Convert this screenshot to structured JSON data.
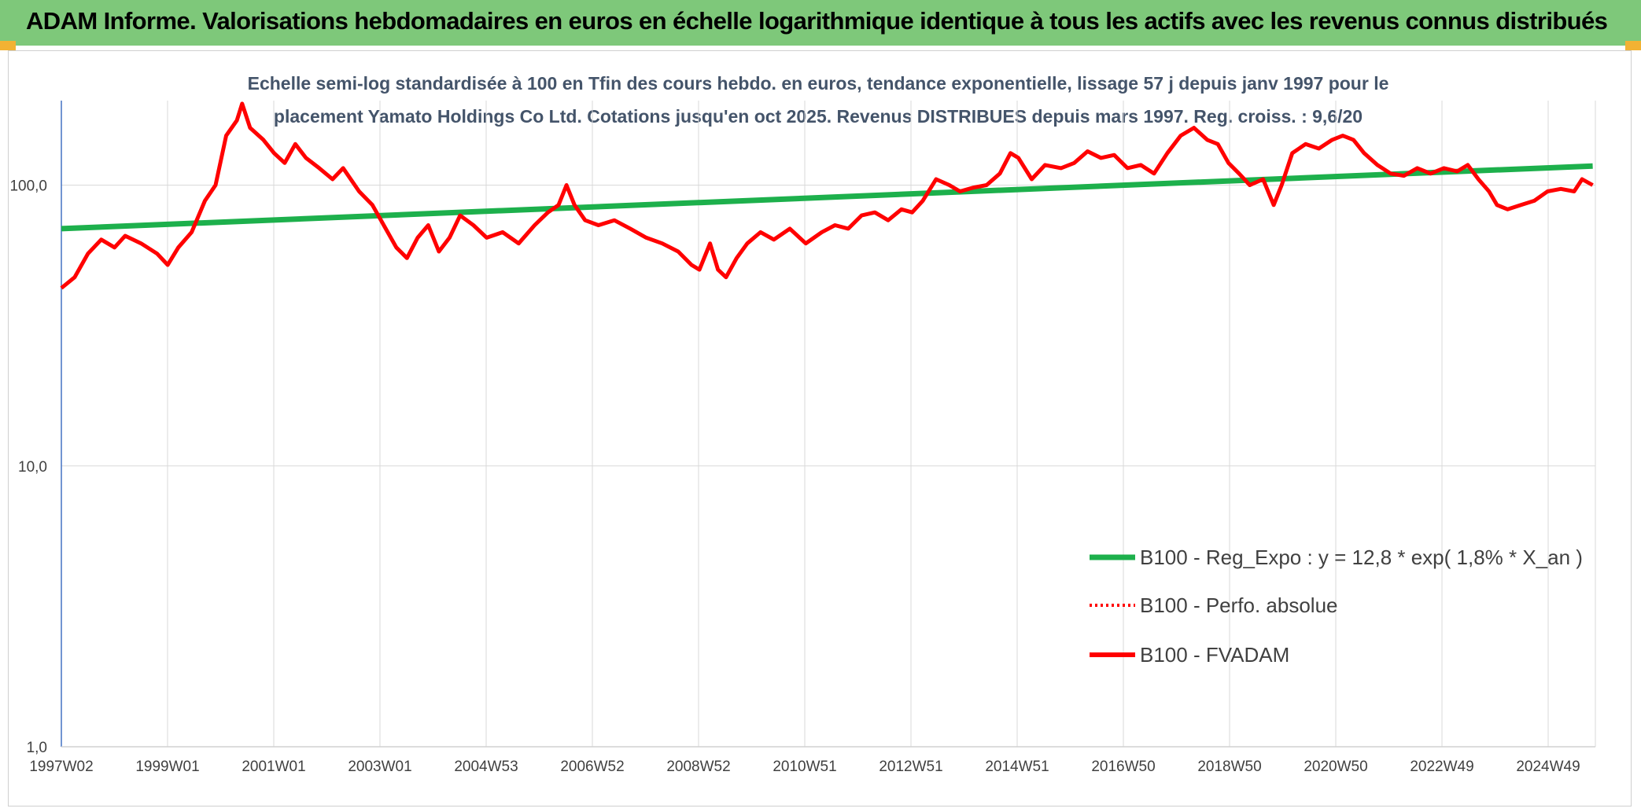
{
  "header": {
    "title": "ADAM Informe. Valorisations hebdomadaires en euros en échelle logarithmique identique à tous les actifs avec les revenus connus distribués"
  },
  "colors": {
    "banner": "#7ec87a",
    "trend": "#1db04c",
    "fvadam": "#ff0000",
    "perfo": "#ff0000",
    "grid": "#d9d9d9",
    "axis": "#4472c4"
  },
  "chart_data": {
    "type": "line",
    "subtitle_lines": [
      "Echelle semi-log standardisée à 100 en Tfin des cours hebdo. en euros, tendance exponentielle, lissage 57 j depuis janv 1997 pour le",
      "placement Yamato Holdings Co Ltd. Cotations jusqu'en oct 2025. Revenus DISTRIBUES depuis mars 1997. Reg. croiss. : 9,6/20"
    ],
    "y_scale": "log",
    "ylim": [
      1,
      200
    ],
    "y_ticks": [
      "1,0",
      "10,0",
      "100,0"
    ],
    "xlim": [
      1997.0,
      2025.85
    ],
    "x_ticks": [
      "1997W02",
      "1999W01",
      "2001W01",
      "2003W01",
      "2004W53",
      "2006W52",
      "2008W52",
      "2010W51",
      "2012W51",
      "2014W51",
      "2016W50",
      "2018W50",
      "2020W50",
      "2022W49",
      "2024W49"
    ],
    "grid": "vertical",
    "legend_position": "bottom-right",
    "series": [
      {
        "name": "B100 - Reg_Expo : y = 12,8 * exp( 1,8% *  X_an )",
        "style": "solid-green",
        "points": [
          [
            1997.0,
            70
          ],
          [
            2025.8,
            117
          ]
        ]
      },
      {
        "name": "B100 - Perfo. absolue",
        "style": "dotted-red",
        "points": []
      },
      {
        "name": "B100 - FVADAM",
        "style": "solid-red",
        "points": [
          [
            1997.0,
            43
          ],
          [
            1997.25,
            47
          ],
          [
            1997.5,
            57
          ],
          [
            1997.75,
            64
          ],
          [
            1998.0,
            60
          ],
          [
            1998.2,
            66
          ],
          [
            1998.5,
            62
          ],
          [
            1998.8,
            57
          ],
          [
            1999.0,
            52
          ],
          [
            1999.2,
            60
          ],
          [
            1999.45,
            68
          ],
          [
            1999.7,
            88
          ],
          [
            1999.9,
            100
          ],
          [
            2000.1,
            150
          ],
          [
            2000.3,
            170
          ],
          [
            2000.4,
            195
          ],
          [
            2000.55,
            160
          ],
          [
            2000.8,
            145
          ],
          [
            2001.0,
            130
          ],
          [
            2001.2,
            120
          ],
          [
            2001.4,
            140
          ],
          [
            2001.6,
            125
          ],
          [
            2001.85,
            115
          ],
          [
            2002.1,
            105
          ],
          [
            2002.3,
            115
          ],
          [
            2002.6,
            95
          ],
          [
            2002.85,
            85
          ],
          [
            2003.1,
            70
          ],
          [
            2003.3,
            60
          ],
          [
            2003.5,
            55
          ],
          [
            2003.7,
            65
          ],
          [
            2003.9,
            72
          ],
          [
            2004.1,
            58
          ],
          [
            2004.3,
            65
          ],
          [
            2004.5,
            78
          ],
          [
            2004.75,
            72
          ],
          [
            2005.0,
            65
          ],
          [
            2005.3,
            68
          ],
          [
            2005.6,
            62
          ],
          [
            2005.9,
            72
          ],
          [
            2006.15,
            80
          ],
          [
            2006.35,
            85
          ],
          [
            2006.5,
            100
          ],
          [
            2006.65,
            85
          ],
          [
            2006.85,
            75
          ],
          [
            2007.1,
            72
          ],
          [
            2007.4,
            75
          ],
          [
            2007.7,
            70
          ],
          [
            2008.0,
            65
          ],
          [
            2008.3,
            62
          ],
          [
            2008.6,
            58
          ],
          [
            2008.85,
            52
          ],
          [
            2009.0,
            50
          ],
          [
            2009.2,
            62
          ],
          [
            2009.35,
            50
          ],
          [
            2009.5,
            47
          ],
          [
            2009.7,
            55
          ],
          [
            2009.9,
            62
          ],
          [
            2010.15,
            68
          ],
          [
            2010.4,
            64
          ],
          [
            2010.7,
            70
          ],
          [
            2011.0,
            62
          ],
          [
            2011.3,
            68
          ],
          [
            2011.55,
            72
          ],
          [
            2011.8,
            70
          ],
          [
            2012.05,
            78
          ],
          [
            2012.3,
            80
          ],
          [
            2012.55,
            75
          ],
          [
            2012.8,
            82
          ],
          [
            2013.0,
            80
          ],
          [
            2013.2,
            88
          ],
          [
            2013.45,
            105
          ],
          [
            2013.7,
            100
          ],
          [
            2013.9,
            95
          ],
          [
            2014.15,
            98
          ],
          [
            2014.4,
            100
          ],
          [
            2014.65,
            110
          ],
          [
            2014.85,
            130
          ],
          [
            2015.0,
            125
          ],
          [
            2015.25,
            105
          ],
          [
            2015.5,
            118
          ],
          [
            2015.8,
            115
          ],
          [
            2016.05,
            120
          ],
          [
            2016.3,
            132
          ],
          [
            2016.55,
            125
          ],
          [
            2016.8,
            128
          ],
          [
            2017.05,
            115
          ],
          [
            2017.3,
            118
          ],
          [
            2017.55,
            110
          ],
          [
            2017.8,
            130
          ],
          [
            2018.05,
            150
          ],
          [
            2018.3,
            160
          ],
          [
            2018.55,
            145
          ],
          [
            2018.75,
            140
          ],
          [
            2018.95,
            120
          ],
          [
            2019.15,
            110
          ],
          [
            2019.35,
            100
          ],
          [
            2019.6,
            105
          ],
          [
            2019.8,
            85
          ],
          [
            2019.95,
            100
          ],
          [
            2020.15,
            130
          ],
          [
            2020.4,
            140
          ],
          [
            2020.65,
            135
          ],
          [
            2020.9,
            145
          ],
          [
            2021.1,
            150
          ],
          [
            2021.3,
            145
          ],
          [
            2021.5,
            130
          ],
          [
            2021.75,
            118
          ],
          [
            2022.0,
            110
          ],
          [
            2022.25,
            108
          ],
          [
            2022.5,
            115
          ],
          [
            2022.75,
            110
          ],
          [
            2023.0,
            115
          ],
          [
            2023.25,
            112
          ],
          [
            2023.45,
            118
          ],
          [
            2023.65,
            105
          ],
          [
            2023.85,
            95
          ],
          [
            2024.0,
            85
          ],
          [
            2024.2,
            82
          ],
          [
            2024.45,
            85
          ],
          [
            2024.7,
            88
          ],
          [
            2024.95,
            95
          ],
          [
            2025.2,
            97
          ],
          [
            2025.45,
            95
          ],
          [
            2025.6,
            105
          ],
          [
            2025.8,
            100
          ]
        ]
      }
    ]
  }
}
